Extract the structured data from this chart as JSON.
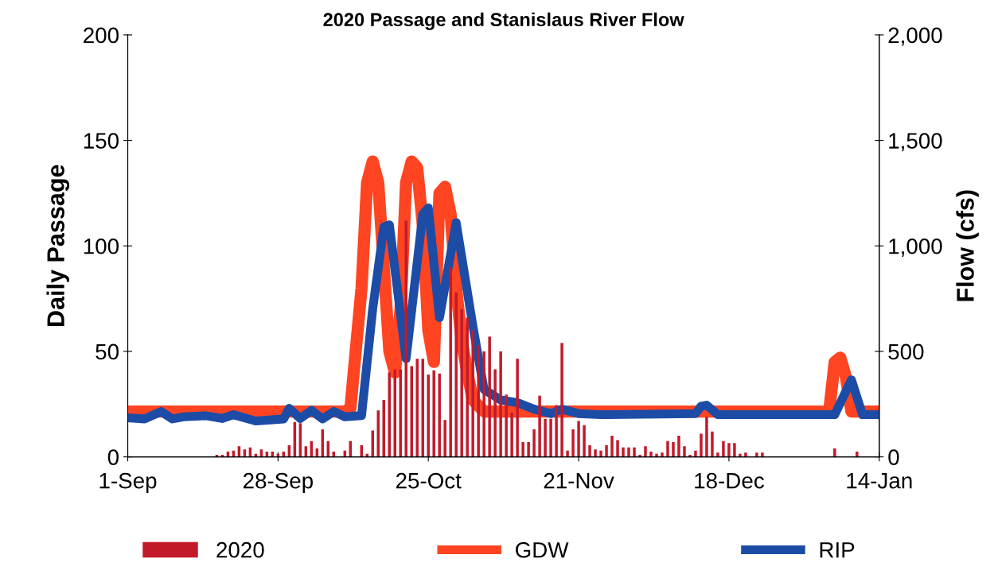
{
  "chart_data": {
    "type": "bar",
    "title": "2020 Passage and Stanislaus River Flow",
    "ylabel": "Daily Passage",
    "y2label": "Flow (cfs)",
    "xlim": [
      "2020-09-01",
      "2021-01-14"
    ],
    "xticks": [
      {
        "value": "2020-09-01",
        "label": "1-Sep"
      },
      {
        "value": "2020-09-28",
        "label": "28-Sep"
      },
      {
        "value": "2020-10-25",
        "label": "25-Oct"
      },
      {
        "value": "2020-11-21",
        "label": "21-Nov"
      },
      {
        "value": "2020-12-18",
        "label": "18-Dec"
      },
      {
        "value": "2021-01-14",
        "label": "14-Jan"
      }
    ],
    "ylim": [
      0,
      200
    ],
    "yticks": [
      0,
      50,
      100,
      150,
      200
    ],
    "y2lim": [
      0,
      2000
    ],
    "y2ticks": [
      {
        "value": 0,
        "label": "0"
      },
      {
        "value": 500,
        "label": "500"
      },
      {
        "value": 1000,
        "label": "1,000"
      },
      {
        "value": 1500,
        "label": "1,500"
      },
      {
        "value": 2000,
        "label": "2,000"
      }
    ],
    "grid": false,
    "legend": "bottom",
    "series": [
      {
        "name": "2020",
        "color": "#c21a2a",
        "x": [
          "2020-09-17",
          "2020-09-18",
          "2020-09-19",
          "2020-09-20",
          "2020-09-21",
          "2020-09-22",
          "2020-09-23",
          "2020-09-24",
          "2020-09-25",
          "2020-09-26",
          "2020-09-27",
          "2020-09-28",
          "2020-09-29",
          "2020-09-30",
          "2020-10-01",
          "2020-10-02",
          "2020-10-03",
          "2020-10-04",
          "2020-10-05",
          "2020-10-06",
          "2020-10-07",
          "2020-10-08",
          "2020-10-10",
          "2020-10-11",
          "2020-10-13",
          "2020-10-14",
          "2020-10-15",
          "2020-10-16",
          "2020-10-17",
          "2020-10-18",
          "2020-10-19",
          "2020-10-20",
          "2020-10-21",
          "2020-10-22",
          "2020-10-23",
          "2020-10-24",
          "2020-10-25",
          "2020-10-26",
          "2020-10-27",
          "2020-10-28",
          "2020-10-29",
          "2020-10-30",
          "2020-10-31",
          "2020-11-01",
          "2020-11-02",
          "2020-11-03",
          "2020-11-04",
          "2020-11-05",
          "2020-11-06",
          "2020-11-07",
          "2020-11-08",
          "2020-11-09",
          "2020-11-10",
          "2020-11-11",
          "2020-11-12",
          "2020-11-13",
          "2020-11-14",
          "2020-11-15",
          "2020-11-16",
          "2020-11-17",
          "2020-11-18",
          "2020-11-19",
          "2020-11-20",
          "2020-11-21",
          "2020-11-22",
          "2020-11-23",
          "2020-11-24",
          "2020-11-25",
          "2020-11-26",
          "2020-11-27",
          "2020-11-28",
          "2020-11-29",
          "2020-11-30",
          "2020-12-01",
          "2020-12-02",
          "2020-12-03",
          "2020-12-04",
          "2020-12-05",
          "2020-12-06",
          "2020-12-07",
          "2020-12-08",
          "2020-12-09",
          "2020-12-10",
          "2020-12-11",
          "2020-12-12",
          "2020-12-13",
          "2020-12-14",
          "2020-12-15",
          "2020-12-16",
          "2020-12-17",
          "2020-12-18",
          "2020-12-19",
          "2020-12-20",
          "2020-12-21",
          "2020-12-23",
          "2020-12-24",
          "2021-01-06",
          "2021-01-10"
        ],
        "values": [
          1,
          1,
          2.5,
          3,
          5,
          3.5,
          4.5,
          1.5,
          3.5,
          2.5,
          2.5,
          1.5,
          2.5,
          5.5,
          16.5,
          16,
          5,
          7.5,
          4,
          13,
          7.5,
          2.5,
          3,
          7.5,
          5.5,
          1.5,
          12.5,
          22,
          27,
          40,
          41.5,
          41.5,
          112,
          43,
          46.5,
          46.5,
          39,
          41,
          39.5,
          17.5,
          90,
          78,
          70,
          66,
          60,
          53,
          50,
          57,
          41.5,
          50,
          29.5,
          21,
          46.5,
          7,
          7,
          13,
          29,
          18,
          18,
          24.5,
          54,
          3,
          13,
          17,
          15,
          5.5,
          3.5,
          3,
          5.5,
          10,
          8,
          4.5,
          4.5,
          4.5,
          1,
          5,
          2.5,
          1.5,
          2,
          7.5,
          7,
          10,
          5,
          1,
          3,
          11,
          19,
          12,
          2,
          7.5,
          6.5,
          6.5,
          1.5,
          2,
          2,
          2,
          4,
          2.5
        ]
      },
      {
        "name": "GDW",
        "type": "line",
        "axis": "y2",
        "color": "#ff4422",
        "x": [
          "2020-09-01",
          "2020-10-10",
          "2020-10-11",
          "2020-10-13",
          "2020-10-14",
          "2020-10-15",
          "2020-10-16",
          "2020-10-17",
          "2020-10-18",
          "2020-10-19",
          "2020-10-20",
          "2020-10-21",
          "2020-10-22",
          "2020-10-23",
          "2020-10-24",
          "2020-10-25",
          "2020-10-26",
          "2020-10-27",
          "2020-10-28",
          "2020-10-29",
          "2020-10-30",
          "2020-10-31",
          "2020-11-01",
          "2020-11-02",
          "2020-11-04",
          "2021-01-05",
          "2021-01-06",
          "2021-01-07",
          "2021-01-08",
          "2021-01-09",
          "2021-01-14"
        ],
        "values": [
          215,
          215,
          230,
          800,
          1300,
          1400,
          1300,
          900,
          500,
          400,
          700,
          1300,
          1400,
          1370,
          1100,
          600,
          450,
          1250,
          1280,
          1150,
          800,
          550,
          400,
          270,
          215,
          215,
          450,
          470,
          380,
          215,
          215
        ]
      },
      {
        "name": "RIP",
        "type": "line",
        "axis": "y2",
        "color": "#1c4ca6",
        "x": [
          "2020-09-01",
          "2020-09-04",
          "2020-09-07",
          "2020-09-09",
          "2020-09-11",
          "2020-09-15",
          "2020-09-18",
          "2020-09-20",
          "2020-09-24",
          "2020-09-29",
          "2020-09-30",
          "2020-10-02",
          "2020-10-04",
          "2020-10-06",
          "2020-10-08",
          "2020-10-10",
          "2020-10-13",
          "2020-10-15",
          "2020-10-17",
          "2020-10-18",
          "2020-10-21",
          "2020-10-24",
          "2020-10-25",
          "2020-10-27",
          "2020-10-30",
          "2020-11-02",
          "2020-11-04",
          "2020-11-07",
          "2020-11-10",
          "2020-11-13",
          "2020-11-16",
          "2020-11-18",
          "2020-11-21",
          "2020-11-25",
          "2020-12-12",
          "2020-12-13",
          "2020-12-14",
          "2020-12-16",
          "2021-01-06",
          "2021-01-09",
          "2021-01-11",
          "2021-01-14"
        ],
        "values": [
          185,
          180,
          215,
          180,
          190,
          195,
          182,
          200,
          170,
          180,
          230,
          182,
          220,
          180,
          215,
          190,
          196,
          700,
          1090,
          1100,
          465,
          1150,
          1180,
          660,
          1110,
          620,
          320,
          270,
          257,
          226,
          205,
          226,
          205,
          200,
          205,
          240,
          245,
          200,
          200,
          365,
          200,
          200
        ]
      }
    ]
  }
}
